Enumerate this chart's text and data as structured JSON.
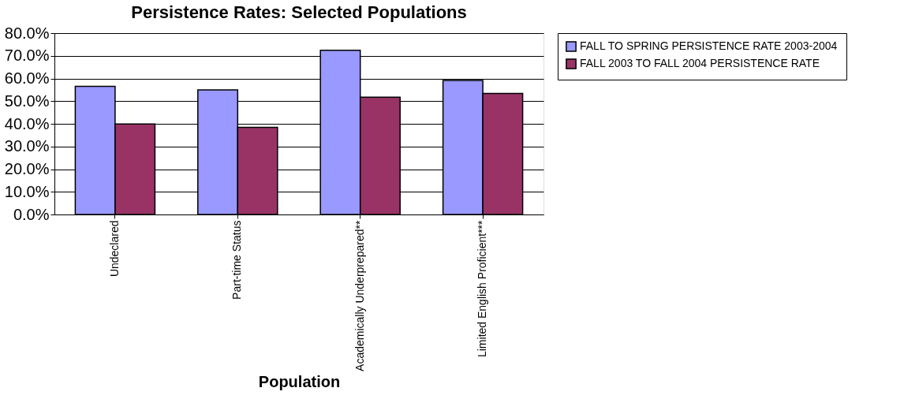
{
  "chart_data": {
    "type": "bar",
    "title": "Persistence Rates: Selected Populations",
    "xlabel": "Population",
    "categories": [
      "Undeclared",
      "Part-time Status",
      "Academically Underprepared**",
      "Limited English Proficient***"
    ],
    "series": [
      {
        "name": "FALL TO SPRING PERSISTENCE RATE 2003-2004",
        "color": "#9999ff",
        "values": [
          56.5,
          55.0,
          72.4,
          59.1
        ]
      },
      {
        "name": "FALL 2003 TO FALL 2004 PERSISTENCE RATE",
        "color": "#993366",
        "values": [
          39.9,
          38.4,
          51.7,
          53.4
        ]
      }
    ],
    "ylim": [
      0,
      80
    ],
    "yticks": [
      {
        "value": 0,
        "label": "0.0%"
      },
      {
        "value": 10,
        "label": "10.0%"
      },
      {
        "value": 20,
        "label": "20.0%"
      },
      {
        "value": 30,
        "label": "30.0%"
      },
      {
        "value": 40,
        "label": "40.0%"
      },
      {
        "value": 50,
        "label": "50.0%"
      },
      {
        "value": 60,
        "label": "60.0%"
      },
      {
        "value": 70,
        "label": "70.0%"
      },
      {
        "value": 80,
        "label": "80.0%"
      }
    ],
    "grid": "y",
    "legend": "right"
  }
}
